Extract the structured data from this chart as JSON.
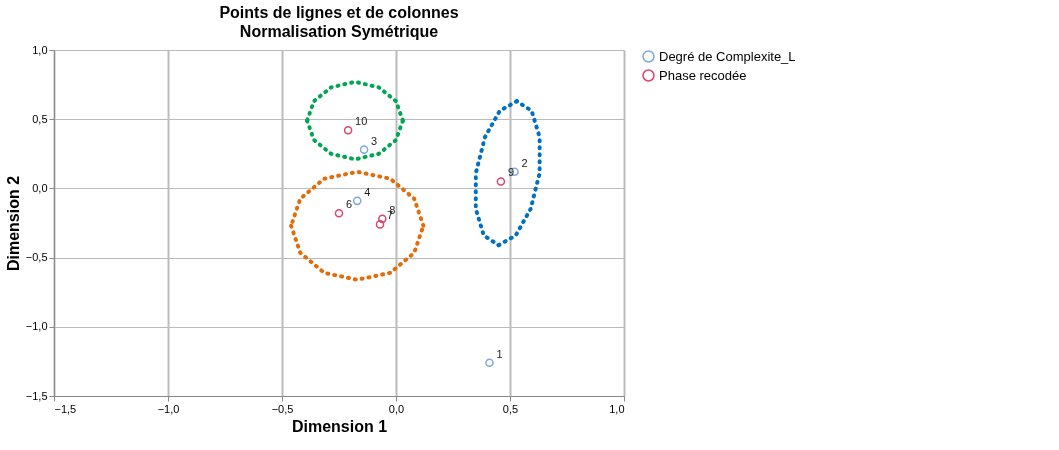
{
  "chart_data": {
    "type": "scatter",
    "title": "Points de lignes et de colonnes",
    "subtitle": "Normalisation Symétrique",
    "xlabel": "Dimension 1",
    "ylabel": "Dimension 2",
    "xlim": [
      -1.5,
      1.0
    ],
    "ylim": [
      -1.5,
      1.0
    ],
    "xticks": [
      {
        "value": -1.5,
        "label": "−1,5"
      },
      {
        "value": -1.0,
        "label": "−1,0"
      },
      {
        "value": -0.5,
        "label": "−0,5"
      },
      {
        "value": 0.0,
        "label": "0,0"
      },
      {
        "value": 0.5,
        "label": "0,5"
      },
      {
        "value": 1.0,
        "label": "1,0"
      }
    ],
    "yticks": [
      {
        "value": -1.5,
        "label": "−1,5"
      },
      {
        "value": -1.0,
        "label": "−1,0"
      },
      {
        "value": -0.5,
        "label": "−0,5"
      },
      {
        "value": 0.0,
        "label": "0,0"
      },
      {
        "value": 0.5,
        "label": "0,5"
      },
      {
        "value": 1.0,
        "label": "1,0"
      }
    ],
    "grid": true,
    "legend": "top right",
    "marker": "circle",
    "annotations": [
      {
        "text": "1",
        "x": 0.41,
        "y": -1.26
      },
      {
        "text": "2",
        "x": 0.52,
        "y": 0.12
      },
      {
        "text": "3",
        "x": -0.14,
        "y": 0.28
      },
      {
        "text": "4",
        "x": -0.17,
        "y": -0.09
      },
      {
        "text": "10",
        "x": -0.21,
        "y": 0.42
      },
      {
        "text": "9",
        "x": 0.46,
        "y": 0.05
      },
      {
        "text": "8",
        "x": -0.06,
        "y": -0.22
      },
      {
        "text": "7",
        "x": -0.07,
        "y": -0.26
      },
      {
        "text": "6",
        "x": -0.25,
        "y": -0.18
      }
    ],
    "series": [
      {
        "name": "Degré de Complexite_L",
        "color": "#7fa9e0",
        "x": [
          0.41,
          0.52,
          -0.14,
          -0.17
        ],
        "values": [
          -1.26,
          0.12,
          0.28,
          -0.09
        ]
      },
      {
        "name": "Phase recodée",
        "color": "#d9456b",
        "x": [
          -0.21,
          0.46,
          -0.06,
          -0.07,
          -0.25
        ],
        "values": [
          0.42,
          0.05,
          -0.22,
          -0.26,
          -0.18
        ]
      },
      {
        "type": "line",
        "line_style": "dotted",
        "marker": "none",
        "color": "#00a651",
        "x": [
          0.03,
          0.0,
          -0.075,
          -0.18,
          -0.285,
          -0.36,
          -0.39
        ],
        "values": [
          0.49,
          0.63,
          0.73,
          0.77,
          0.73,
          0.63,
          0.49
        ]
      },
      {
        "type": "line",
        "line_style": "dotted",
        "marker": "none",
        "color": "#00a651",
        "x": [
          -0.39,
          -0.36,
          -0.285,
          -0.18,
          -0.075,
          0.0,
          0.03
        ],
        "values": [
          0.49,
          0.35,
          0.25,
          0.21,
          0.25,
          0.35,
          0.49
        ]
      },
      {
        "type": "line",
        "line_style": "dotted",
        "marker": "none",
        "color": "#e36c0a",
        "x": [
          0.12,
          0.08,
          -0.025,
          -0.17,
          -0.315,
          -0.42,
          -0.46
        ],
        "values": [
          -0.27,
          -0.075,
          0.07,
          0.12,
          0.07,
          -0.075,
          -0.27
        ]
      },
      {
        "type": "line",
        "line_style": "dotted",
        "marker": "none",
        "color": "#e36c0a",
        "x": [
          -0.46,
          -0.42,
          -0.315,
          -0.17,
          -0.025,
          0.08,
          0.12
        ],
        "values": [
          -0.27,
          -0.465,
          -0.61,
          -0.66,
          -0.61,
          -0.465,
          -0.27
        ]
      },
      {
        "type": "line",
        "line_style": "dotted",
        "marker": "none",
        "color": "#0070c0",
        "x": [
          0.53,
          0.455,
          0.39,
          0.35,
          0.35,
          0.385,
          0.45
        ],
        "values": [
          0.63,
          0.56,
          0.37,
          0.11,
          -0.15,
          -0.34,
          -0.41
        ]
      },
      {
        "type": "line",
        "line_style": "dotted",
        "marker": "none",
        "color": "#0070c0",
        "x": [
          0.45,
          0.525,
          0.59,
          0.63,
          0.63,
          0.595,
          0.53
        ],
        "values": [
          -0.41,
          -0.34,
          -0.15,
          0.11,
          0.37,
          0.56,
          0.63
        ]
      }
    ]
  }
}
